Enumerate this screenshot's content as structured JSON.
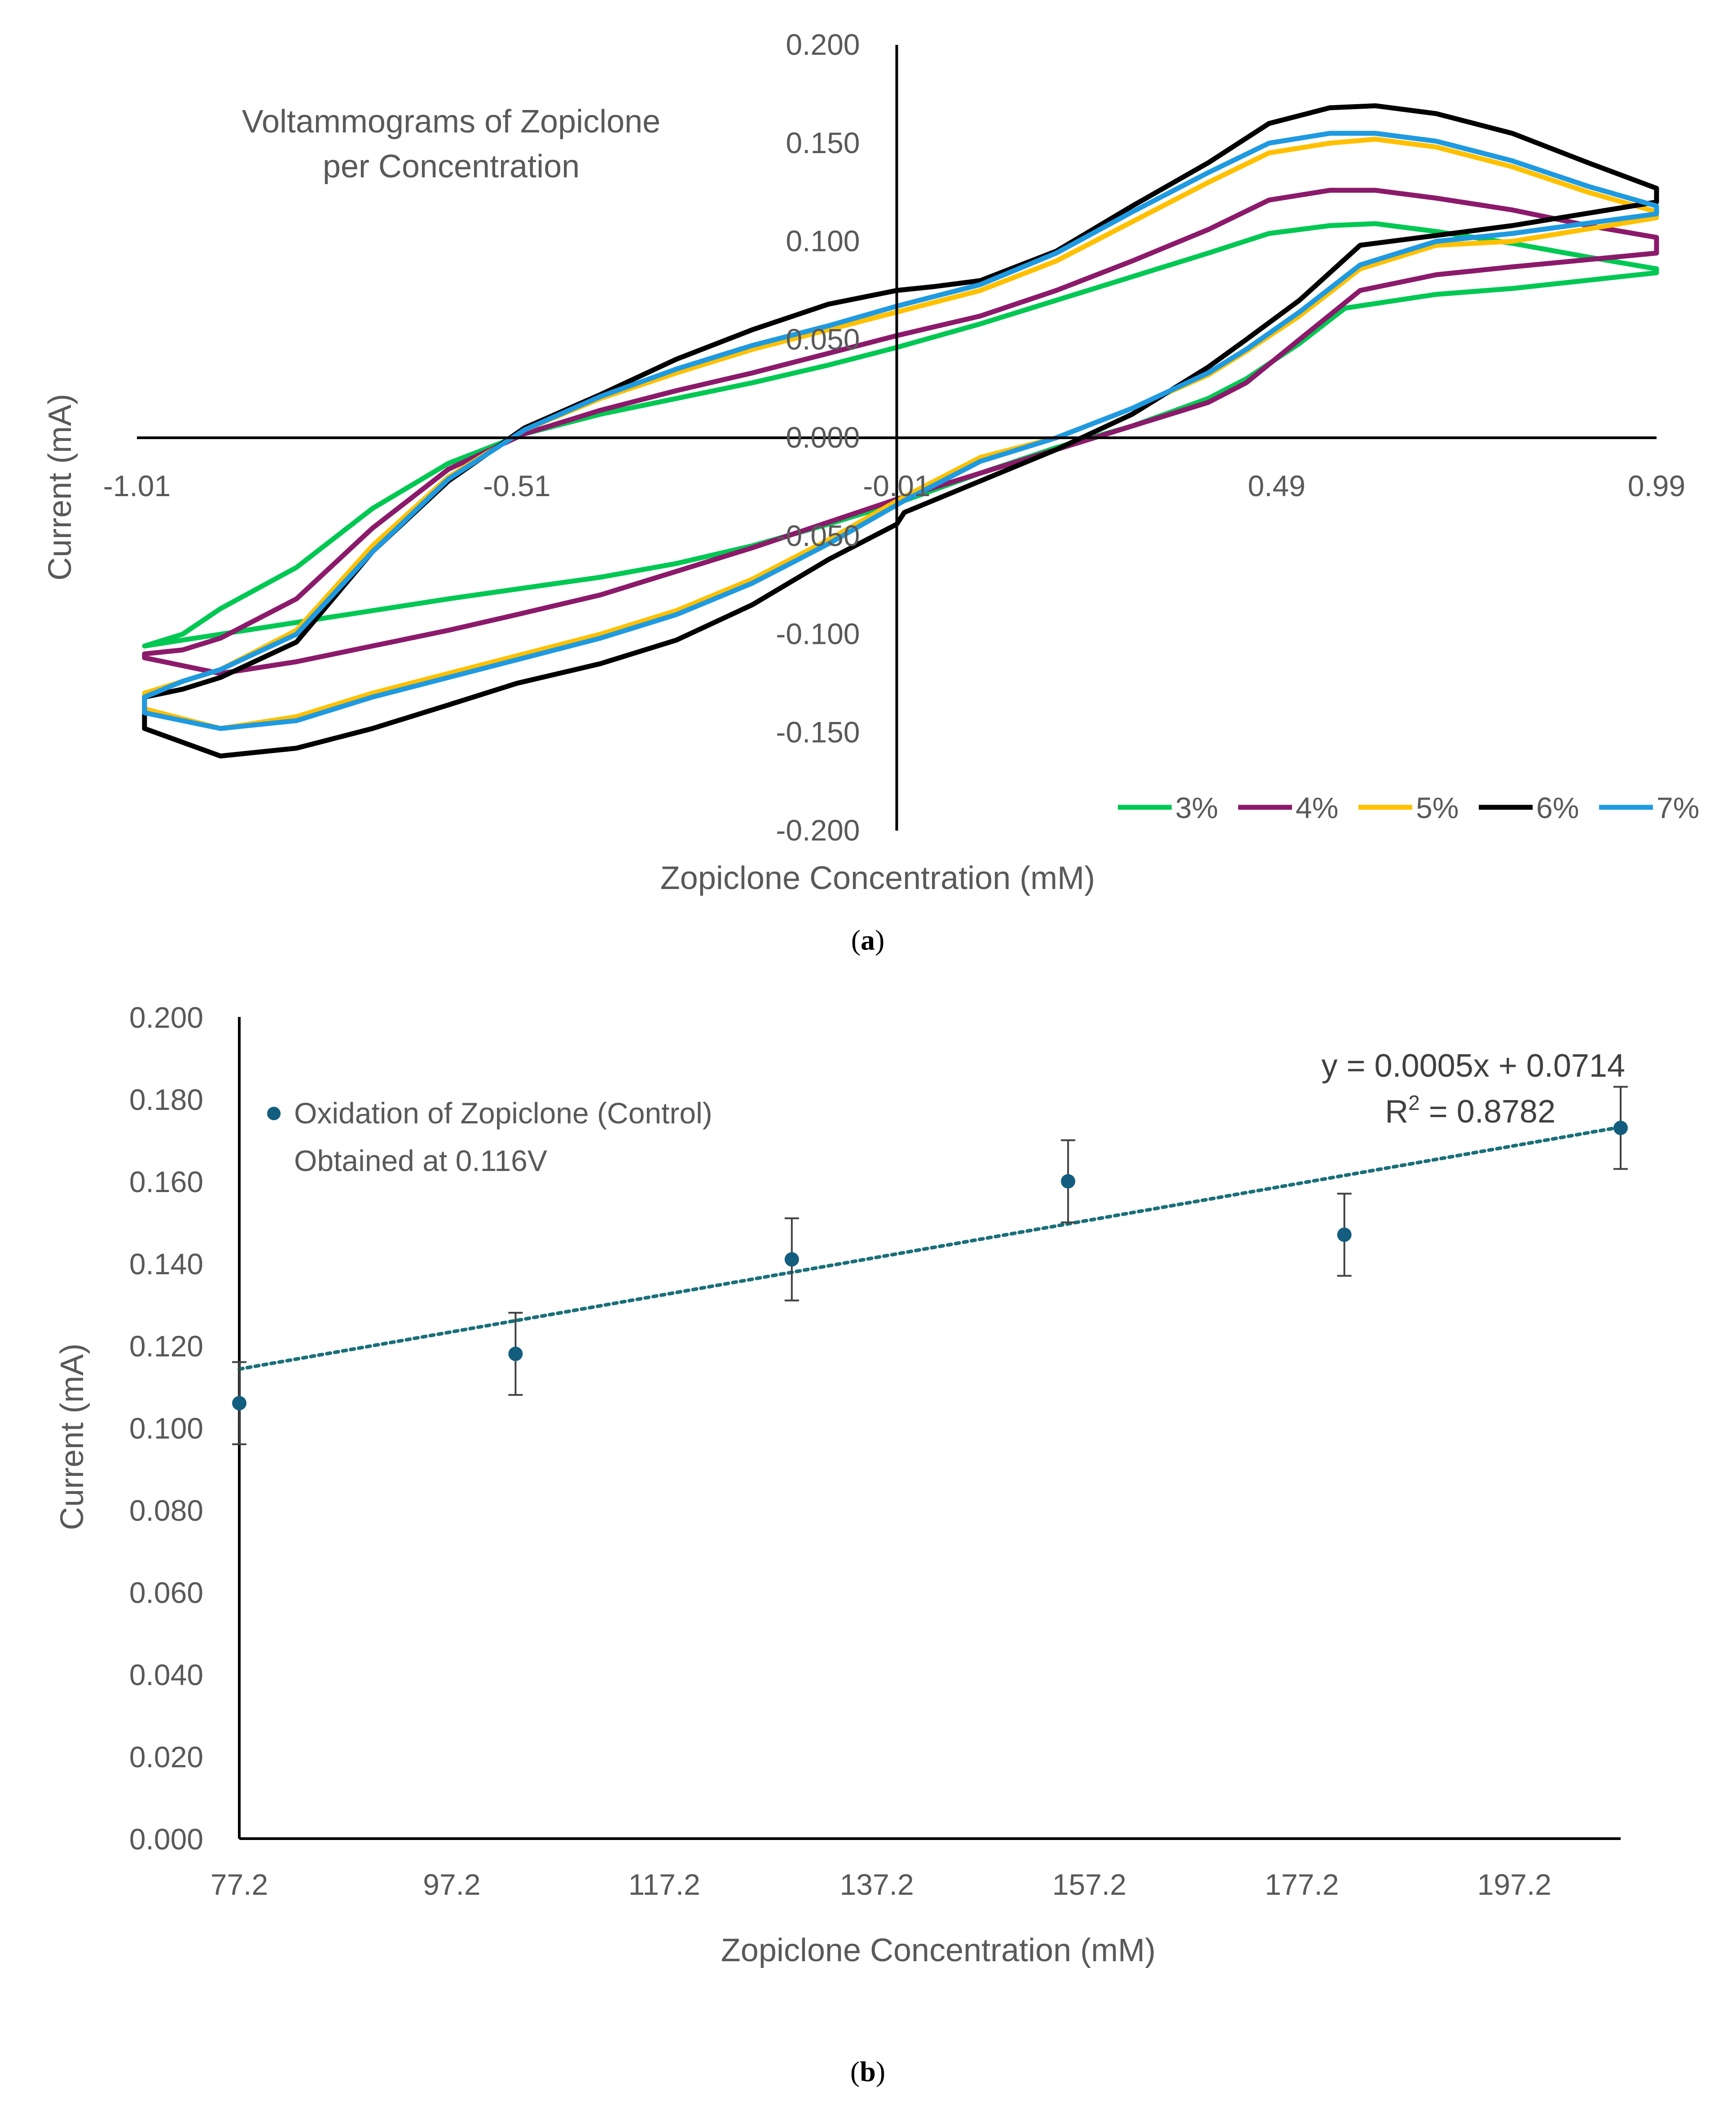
{
  "chart_data": [
    {
      "type": "line",
      "title_lines": [
        "Voltammograms of Zopiclone",
        "per Concentration"
      ],
      "xlabel": "Zopiclone Concentration (mM)",
      "ylabel": "Current (mA)",
      "xlim": [
        -1.01,
        0.99
      ],
      "ylim": [
        -0.2,
        0.2
      ],
      "x_ticks": [
        "-1.01",
        "-0.51",
        "-0.01",
        "0.49",
        "0.99"
      ],
      "x_tick_values": [
        -1.01,
        -0.51,
        -0.01,
        0.49,
        0.99
      ],
      "y_ticks": [
        "0.200",
        "0.150",
        "0.100",
        "0.050",
        "0.000",
        "-0.050",
        "-0.100",
        "-0.150",
        "-0.200"
      ],
      "y_tick_values": [
        0.2,
        0.15,
        0.1,
        0.05,
        0.0,
        -0.05,
        -0.1,
        -0.15,
        -0.2
      ],
      "legend_position": "bottom-right",
      "grid": false,
      "caption": "a",
      "series": [
        {
          "name": "3%",
          "color": "#00c853",
          "x": [
            -1.0,
            -0.9,
            -0.8,
            -0.7,
            -0.6,
            -0.51,
            -0.4,
            -0.3,
            -0.2,
            -0.1,
            0.0,
            0.1,
            0.2,
            0.3,
            0.4,
            0.45,
            0.52,
            0.58,
            0.7,
            0.8,
            0.99,
            0.99,
            0.9,
            0.8,
            0.7,
            0.62,
            0.56,
            0.48,
            0.4,
            0.3,
            0.2,
            0.1,
            -0.01,
            -0.1,
            -0.2,
            -0.3,
            -0.4,
            -0.5,
            -0.6,
            -0.7,
            -0.8,
            -0.9,
            -0.95,
            -1.0
          ],
          "y": [
            -0.106,
            -0.1,
            -0.094,
            -0.088,
            -0.082,
            -0.077,
            -0.071,
            -0.064,
            -0.055,
            -0.044,
            -0.032,
            -0.018,
            -0.005,
            0.006,
            0.02,
            0.03,
            0.048,
            0.066,
            0.073,
            0.076,
            0.084,
            0.086,
            0.092,
            0.099,
            0.105,
            0.109,
            0.108,
            0.104,
            0.094,
            0.082,
            0.07,
            0.058,
            0.046,
            0.037,
            0.028,
            0.02,
            0.012,
            0.002,
            -0.013,
            -0.036,
            -0.066,
            -0.087,
            -0.1,
            -0.106
          ]
        },
        {
          "name": "4%",
          "color": "#8b1a6b",
          "x": [
            -1.0,
            -0.9,
            -0.8,
            -0.7,
            -0.6,
            -0.51,
            -0.4,
            -0.3,
            -0.2,
            -0.1,
            0.0,
            0.1,
            0.2,
            0.3,
            0.4,
            0.45,
            0.52,
            0.6,
            0.7,
            0.8,
            0.99,
            0.99,
            0.9,
            0.8,
            0.7,
            0.62,
            0.56,
            0.48,
            0.4,
            0.3,
            0.2,
            0.1,
            -0.01,
            -0.1,
            -0.2,
            -0.3,
            -0.4,
            -0.5,
            -0.6,
            -0.7,
            -0.8,
            -0.9,
            -0.95,
            -1.0
          ],
          "y": [
            -0.112,
            -0.12,
            -0.114,
            -0.106,
            -0.098,
            -0.09,
            -0.08,
            -0.068,
            -0.056,
            -0.043,
            -0.03,
            -0.018,
            -0.006,
            0.006,
            0.018,
            0.028,
            0.05,
            0.075,
            0.083,
            0.087,
            0.094,
            0.102,
            0.108,
            0.116,
            0.122,
            0.126,
            0.126,
            0.121,
            0.106,
            0.09,
            0.075,
            0.062,
            0.052,
            0.043,
            0.033,
            0.024,
            0.014,
            0.002,
            -0.016,
            -0.046,
            -0.082,
            -0.102,
            -0.108,
            -0.11
          ]
        },
        {
          "name": "5%",
          "color": "#ffc000",
          "x": [
            -1.0,
            -0.9,
            -0.8,
            -0.7,
            -0.6,
            -0.51,
            -0.4,
            -0.3,
            -0.2,
            -0.1,
            0.0,
            0.1,
            0.2,
            0.3,
            0.4,
            0.45,
            0.52,
            0.6,
            0.7,
            0.8,
            0.99,
            0.99,
            0.9,
            0.8,
            0.7,
            0.62,
            0.56,
            0.48,
            0.4,
            0.3,
            0.2,
            0.1,
            -0.01,
            -0.1,
            -0.2,
            -0.3,
            -0.4,
            -0.5,
            -0.6,
            -0.7,
            -0.8,
            -0.9,
            -0.95,
            -1.0
          ],
          "y": [
            -0.138,
            -0.148,
            -0.142,
            -0.13,
            -0.12,
            -0.111,
            -0.1,
            -0.088,
            -0.072,
            -0.052,
            -0.03,
            -0.01,
            0.0,
            0.015,
            0.032,
            0.044,
            0.062,
            0.086,
            0.098,
            0.1,
            0.112,
            0.115,
            0.125,
            0.138,
            0.148,
            0.152,
            0.15,
            0.145,
            0.13,
            0.11,
            0.09,
            0.075,
            0.064,
            0.055,
            0.045,
            0.033,
            0.02,
            0.004,
            -0.02,
            -0.055,
            -0.098,
            -0.118,
            -0.124,
            -0.13
          ]
        },
        {
          "name": "6%",
          "color": "#000000",
          "x": [
            -1.0,
            -0.9,
            -0.8,
            -0.7,
            -0.6,
            -0.51,
            -0.4,
            -0.3,
            -0.2,
            -0.1,
            -0.01,
            0.0,
            0.1,
            0.2,
            0.3,
            0.4,
            0.45,
            0.52,
            0.6,
            0.7,
            0.8,
            0.99,
            0.99,
            0.9,
            0.8,
            0.7,
            0.62,
            0.56,
            0.48,
            0.4,
            0.3,
            0.2,
            0.1,
            0.04,
            -0.01,
            -0.1,
            -0.2,
            -0.3,
            -0.4,
            -0.5,
            -0.6,
            -0.7,
            -0.8,
            -0.9,
            -0.95,
            -1.0
          ],
          "y": [
            -0.148,
            -0.162,
            -0.158,
            -0.148,
            -0.136,
            -0.125,
            -0.115,
            -0.103,
            -0.085,
            -0.062,
            -0.044,
            -0.038,
            -0.022,
            -0.006,
            0.012,
            0.036,
            0.05,
            0.07,
            0.098,
            0.103,
            0.108,
            0.12,
            0.127,
            0.14,
            0.155,
            0.165,
            0.169,
            0.168,
            0.16,
            0.14,
            0.118,
            0.095,
            0.08,
            0.077,
            0.075,
            0.068,
            0.055,
            0.04,
            0.022,
            0.005,
            -0.022,
            -0.058,
            -0.104,
            -0.122,
            -0.128,
            -0.132
          ]
        },
        {
          "name": "7%",
          "color": "#1f9ae0",
          "x": [
            -1.0,
            -0.9,
            -0.8,
            -0.7,
            -0.6,
            -0.51,
            -0.4,
            -0.3,
            -0.2,
            -0.1,
            0.0,
            0.1,
            0.2,
            0.3,
            0.4,
            0.45,
            0.52,
            0.6,
            0.7,
            0.8,
            0.99,
            0.99,
            0.9,
            0.8,
            0.7,
            0.62,
            0.56,
            0.48,
            0.4,
            0.3,
            0.2,
            0.1,
            -0.01,
            -0.1,
            -0.2,
            -0.3,
            -0.4,
            -0.5,
            -0.6,
            -0.7,
            -0.8,
            -0.9,
            -0.95,
            -1.0
          ],
          "y": [
            -0.14,
            -0.148,
            -0.144,
            -0.132,
            -0.122,
            -0.113,
            -0.102,
            -0.09,
            -0.074,
            -0.054,
            -0.032,
            -0.012,
            0.0,
            0.015,
            0.033,
            0.045,
            0.064,
            0.088,
            0.1,
            0.104,
            0.114,
            0.118,
            0.128,
            0.141,
            0.151,
            0.155,
            0.155,
            0.15,
            0.135,
            0.115,
            0.094,
            0.078,
            0.067,
            0.057,
            0.047,
            0.035,
            0.021,
            0.004,
            -0.021,
            -0.058,
            -0.1,
            -0.118,
            -0.124,
            -0.132
          ]
        }
      ]
    },
    {
      "type": "scatter",
      "xlabel": "Zopiclone Concentration (mM)",
      "ylabel": "Current (mA)",
      "xlim": [
        77.2,
        207.2
      ],
      "ylim": [
        0,
        0.2
      ],
      "x_ticks": [
        "77.2",
        "97.2",
        "117.2",
        "137.2",
        "157.2",
        "177.2",
        "197.2"
      ],
      "x_tick_values": [
        77.2,
        97.2,
        117.2,
        137.2,
        157.2,
        177.2,
        197.2
      ],
      "y_ticks": [
        "0.000",
        "0.020",
        "0.040",
        "0.060",
        "0.080",
        "0.100",
        "0.120",
        "0.140",
        "0.160",
        "0.180",
        "0.200"
      ],
      "y_tick_values": [
        0,
        0.02,
        0.04,
        0.06,
        0.08,
        0.1,
        0.12,
        0.14,
        0.16,
        0.18,
        0.2
      ],
      "grid": false,
      "legend_position": "top-left",
      "caption": "b",
      "series": [
        {
          "name": "Oxidation of Zopiclone (Control)",
          "name_line2": "Obtained at 0.116V",
          "color": "#135d7e",
          "x": [
            77.2,
            103.2,
            129.2,
            155.2,
            181.2,
            207.2
          ],
          "y": [
            0.106,
            0.118,
            0.141,
            0.16,
            0.147,
            0.173
          ],
          "error": [
            0.01,
            0.01,
            0.01,
            0.01,
            0.01,
            0.01
          ]
        }
      ],
      "trendline": {
        "slope": 0.0005,
        "intercept": 0.0714,
        "style": "dotted",
        "color": "#1a6f7a",
        "equation": "y = 0.0005x + 0.0714",
        "r2_label": "R",
        "r2_sup": "2",
        "r2_value": " = 0.8782"
      }
    }
  ]
}
